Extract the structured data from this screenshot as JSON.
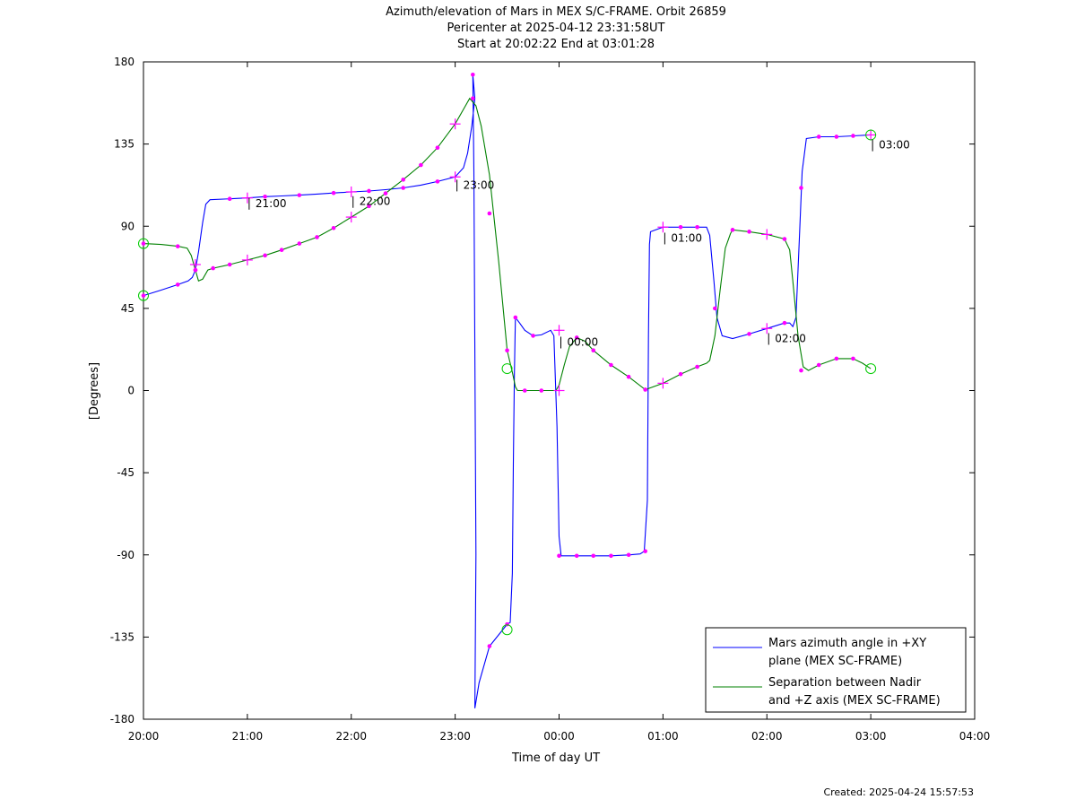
{
  "chart_data": {
    "type": "line",
    "title_lines": [
      "Azimuth/elevation of Mars in MEX S/C-FRAME.  Orbit 26859",
      "Pericenter at 2025-04-12 23:31:58UT",
      "Start at 20:02:22 End at 03:01:28"
    ],
    "xlabel": "Time of day UT",
    "ylabel": "[Degrees]",
    "x_ticks": [
      "20:00",
      "21:00",
      "22:00",
      "23:00",
      "00:00",
      "01:00",
      "02:00",
      "03:00",
      "04:00"
    ],
    "xlim_hours": [
      0,
      8
    ],
    "ylim": [
      -180,
      180
    ],
    "y_ticks": [
      180,
      135,
      90,
      45,
      0,
      -45,
      -90,
      -135,
      -180
    ],
    "legend_position": "bottom-right",
    "series": [
      {
        "name": "Mars azimuth angle in +XY plane (MEX SC-FRAME)",
        "legend_lines": [
          "Mars azimuth angle in +XY",
          "plane (MEX SC-FRAME)"
        ],
        "color": "#0000ff",
        "points": [
          [
            0.0,
            52
          ],
          [
            0.17,
            55
          ],
          [
            0.33,
            58
          ],
          [
            0.43,
            60
          ],
          [
            0.47,
            62
          ],
          [
            0.5,
            66
          ],
          [
            0.53,
            76
          ],
          [
            0.57,
            92
          ],
          [
            0.6,
            102
          ],
          [
            0.64,
            104.5
          ],
          [
            0.83,
            105
          ],
          [
            1.0,
            105.5
          ],
          [
            1.17,
            106.2
          ],
          [
            1.33,
            106.6
          ],
          [
            1.5,
            107
          ],
          [
            1.67,
            107.6
          ],
          [
            1.83,
            108.2
          ],
          [
            2.0,
            108.8
          ],
          [
            2.17,
            109.3
          ],
          [
            2.33,
            110
          ],
          [
            2.5,
            111
          ],
          [
            2.67,
            112.5
          ],
          [
            2.83,
            114.5
          ],
          [
            3.0,
            117
          ],
          [
            3.08,
            122
          ],
          [
            3.12,
            130
          ],
          [
            3.16,
            145
          ],
          [
            3.19,
            160
          ],
          [
            3.17,
            173
          ],
          [
            3.18,
            120
          ],
          [
            3.19,
            20
          ],
          [
            3.2,
            -90
          ],
          [
            3.19,
            -174
          ],
          [
            3.23,
            -160
          ],
          [
            3.33,
            -140
          ],
          [
            3.5,
            -128
          ],
          [
            3.53,
            -127
          ],
          [
            3.55,
            -100
          ],
          [
            3.56,
            -40
          ],
          [
            3.57,
            10
          ],
          [
            3.58,
            40
          ],
          [
            3.62,
            37
          ],
          [
            3.67,
            33
          ],
          [
            3.75,
            30
          ],
          [
            3.83,
            30.5
          ],
          [
            3.92,
            33
          ],
          [
            3.95,
            30
          ],
          [
            3.98,
            -20
          ],
          [
            4.0,
            -80
          ],
          [
            4.02,
            -90.5
          ],
          [
            4.17,
            -90.5
          ],
          [
            4.33,
            -90.5
          ],
          [
            4.5,
            -90.5
          ],
          [
            4.67,
            -90
          ],
          [
            4.78,
            -89.5
          ],
          [
            4.82,
            -88
          ],
          [
            4.85,
            -60
          ],
          [
            4.86,
            30
          ],
          [
            4.87,
            80
          ],
          [
            4.88,
            87
          ],
          [
            5.0,
            89.5
          ],
          [
            5.17,
            89.5
          ],
          [
            5.33,
            89.5
          ],
          [
            5.42,
            89.5
          ],
          [
            5.45,
            85
          ],
          [
            5.49,
            60
          ],
          [
            5.52,
            40
          ],
          [
            5.57,
            30
          ],
          [
            5.67,
            28.5
          ],
          [
            5.83,
            31
          ],
          [
            6.0,
            34
          ],
          [
            6.17,
            37
          ],
          [
            6.22,
            37
          ],
          [
            6.25,
            35
          ],
          [
            6.28,
            40
          ],
          [
            6.31,
            80
          ],
          [
            6.34,
            120
          ],
          [
            6.38,
            138
          ],
          [
            6.5,
            139
          ],
          [
            6.67,
            139
          ],
          [
            6.83,
            139.5
          ],
          [
            7.0,
            140
          ]
        ]
      },
      {
        "name": "Separation between Nadir and +Z axis (MEX SC-FRAME)",
        "legend_lines": [
          "Separation between Nadir",
          "and +Z axis (MEX SC-FRAME)"
        ],
        "color": "#008000",
        "points": [
          [
            0.0,
            80.5
          ],
          [
            0.17,
            80
          ],
          [
            0.33,
            79
          ],
          [
            0.42,
            78
          ],
          [
            0.46,
            74
          ],
          [
            0.5,
            66
          ],
          [
            0.53,
            60
          ],
          [
            0.57,
            61
          ],
          [
            0.62,
            66
          ],
          [
            0.67,
            67
          ],
          [
            0.83,
            69
          ],
          [
            1.0,
            71.5
          ],
          [
            1.17,
            74
          ],
          [
            1.33,
            77
          ],
          [
            1.5,
            80.5
          ],
          [
            1.67,
            84
          ],
          [
            1.83,
            89
          ],
          [
            2.0,
            95
          ],
          [
            2.17,
            101
          ],
          [
            2.33,
            108
          ],
          [
            2.5,
            115.5
          ],
          [
            2.67,
            123.5
          ],
          [
            2.83,
            133
          ],
          [
            3.0,
            146
          ],
          [
            3.08,
            154
          ],
          [
            3.14,
            160
          ],
          [
            3.2,
            156
          ],
          [
            3.25,
            145
          ],
          [
            3.33,
            118
          ],
          [
            3.42,
            70
          ],
          [
            3.5,
            22
          ],
          [
            3.55,
            10
          ],
          [
            3.58,
            2
          ],
          [
            3.6,
            0
          ],
          [
            3.67,
            0
          ],
          [
            3.83,
            0
          ],
          [
            3.97,
            0
          ],
          [
            4.0,
            3
          ],
          [
            4.05,
            14
          ],
          [
            4.1,
            24
          ],
          [
            4.17,
            29
          ],
          [
            4.25,
            27
          ],
          [
            4.33,
            22
          ],
          [
            4.5,
            14
          ],
          [
            4.67,
            7.5
          ],
          [
            4.83,
            0.5
          ],
          [
            5.0,
            4
          ],
          [
            5.17,
            9
          ],
          [
            5.33,
            13
          ],
          [
            5.42,
            15
          ],
          [
            5.45,
            16.5
          ],
          [
            5.5,
            30
          ],
          [
            5.55,
            55
          ],
          [
            5.6,
            78
          ],
          [
            5.65,
            86
          ],
          [
            5.67,
            88
          ],
          [
            5.83,
            87
          ],
          [
            6.0,
            85.5
          ],
          [
            6.17,
            83
          ],
          [
            6.22,
            77
          ],
          [
            6.25,
            60
          ],
          [
            6.3,
            30
          ],
          [
            6.35,
            13
          ],
          [
            6.4,
            11
          ],
          [
            6.5,
            14
          ],
          [
            6.67,
            17.5
          ],
          [
            6.83,
            17.5
          ],
          [
            6.92,
            15
          ],
          [
            7.0,
            12
          ]
        ]
      }
    ],
    "dot_markers": [
      [
        0.0,
        52
      ],
      [
        0.33,
        58
      ],
      [
        0.5,
        66
      ],
      [
        0.83,
        105
      ],
      [
        1.17,
        106.2
      ],
      [
        1.5,
        107
      ],
      [
        1.83,
        108.2
      ],
      [
        2.17,
        109.3
      ],
      [
        2.5,
        111
      ],
      [
        2.83,
        114.5
      ],
      [
        3.17,
        173
      ],
      [
        3.33,
        -140
      ],
      [
        3.5,
        -128
      ],
      [
        3.58,
        40
      ],
      [
        3.75,
        30
      ],
      [
        4.0,
        -90.5
      ],
      [
        4.17,
        -90.5
      ],
      [
        4.33,
        -90.5
      ],
      [
        4.5,
        -90.5
      ],
      [
        4.67,
        -90
      ],
      [
        4.83,
        -88
      ],
      [
        5.17,
        89.5
      ],
      [
        5.33,
        89.5
      ],
      [
        5.5,
        45
      ],
      [
        5.83,
        31
      ],
      [
        6.17,
        37
      ],
      [
        6.33,
        111
      ],
      [
        6.5,
        139
      ],
      [
        6.67,
        139
      ],
      [
        6.83,
        139.5
      ],
      [
        0.0,
        80.5
      ],
      [
        0.33,
        79
      ],
      [
        0.5,
        66
      ],
      [
        0.67,
        67
      ],
      [
        0.83,
        69
      ],
      [
        1.17,
        74
      ],
      [
        1.33,
        77
      ],
      [
        1.5,
        80.5
      ],
      [
        1.67,
        84
      ],
      [
        1.83,
        89
      ],
      [
        2.17,
        101
      ],
      [
        2.33,
        108
      ],
      [
        2.5,
        115.5
      ],
      [
        2.67,
        123.5
      ],
      [
        2.83,
        133
      ],
      [
        3.17,
        160
      ],
      [
        3.33,
        97
      ],
      [
        3.5,
        22
      ],
      [
        3.67,
        0
      ],
      [
        3.83,
        0
      ],
      [
        4.17,
        29
      ],
      [
        4.33,
        22
      ],
      [
        4.5,
        14
      ],
      [
        4.67,
        7.5
      ],
      [
        4.83,
        0.5
      ],
      [
        5.17,
        9
      ],
      [
        5.33,
        13
      ],
      [
        5.67,
        88
      ],
      [
        5.83,
        87
      ],
      [
        6.17,
        83
      ],
      [
        6.33,
        11
      ],
      [
        6.5,
        14
      ],
      [
        6.67,
        17.5
      ],
      [
        6.83,
        17.5
      ]
    ],
    "cross_markers": [
      [
        0.5,
        69
      ],
      [
        1.0,
        105.5
      ],
      [
        2.0,
        108.8
      ],
      [
        3.0,
        117
      ],
      [
        4.0,
        33
      ],
      [
        5.0,
        89.5
      ],
      [
        6.0,
        34
      ],
      [
        7.0,
        140
      ],
      [
        1.0,
        71.5
      ],
      [
        2.0,
        95
      ],
      [
        3.0,
        146
      ],
      [
        4.0,
        0
      ],
      [
        5.0,
        4
      ],
      [
        6.0,
        85.5
      ]
    ],
    "circle_markers": [
      [
        0.0,
        52
      ],
      [
        0.0,
        80.5
      ],
      [
        3.5,
        12
      ],
      [
        3.5,
        -131
      ],
      [
        7.0,
        140
      ],
      [
        7.0,
        12
      ]
    ],
    "time_labels": [
      {
        "text": "21:00",
        "x": 1.0,
        "y": 103
      },
      {
        "text": "22:00",
        "x": 2.0,
        "y": 104
      },
      {
        "text": "23:00",
        "x": 3.0,
        "y": 113
      },
      {
        "text": "00:00",
        "x": 4.0,
        "y": 27
      },
      {
        "text": "01:00",
        "x": 5.0,
        "y": 84
      },
      {
        "text": "02:00",
        "x": 6.0,
        "y": 29
      },
      {
        "text": "03:00",
        "x": 7.0,
        "y": 135
      }
    ],
    "colors": {
      "marker": "#ff00ff",
      "circle": "#00cc00"
    }
  },
  "footer": {
    "created": "Created: 2025-04-24 15:57:53"
  }
}
